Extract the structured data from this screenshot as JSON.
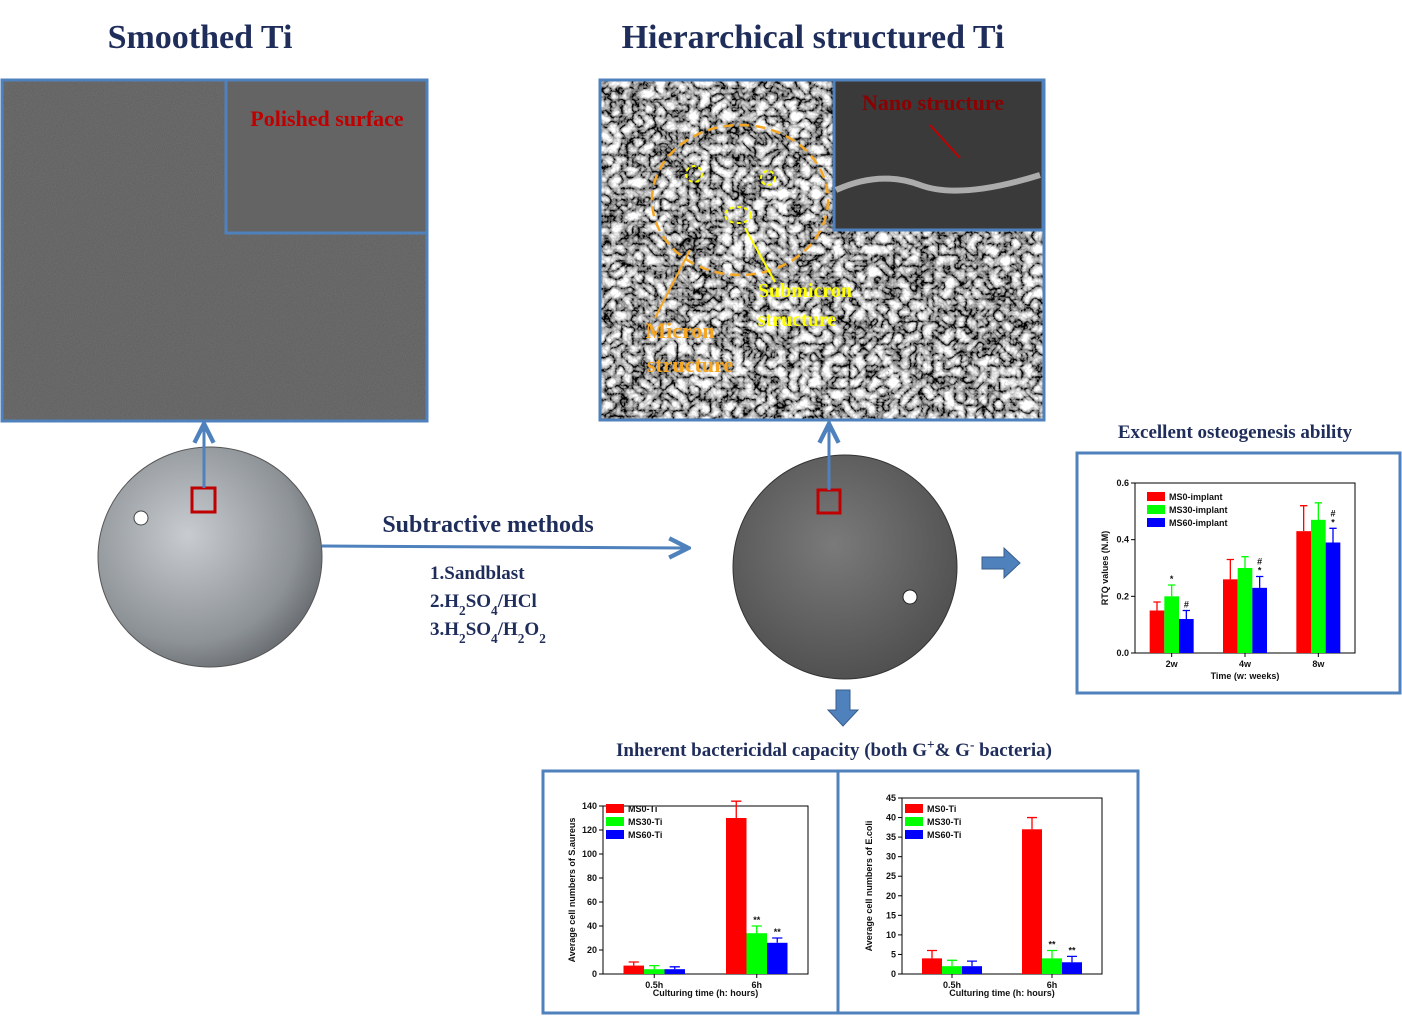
{
  "titles": {
    "left": "Smoothed Ti",
    "right": "Hierarchical structured Ti"
  },
  "labels": {
    "polished": "Polished surface",
    "nano": "Nano structure",
    "micron": [
      "Micron",
      "structure"
    ],
    "submicron": [
      "Submicron",
      "structure"
    ]
  },
  "process": {
    "title": "Subtractive methods",
    "methods": [
      [
        "1.Sandblast"
      ],
      [
        "2.H",
        "2",
        "SO",
        "4",
        "/HCl"
      ],
      [
        "3.H",
        "2",
        "SO",
        "4",
        "/H",
        "2",
        "O",
        "2"
      ]
    ]
  },
  "osteogenesis_title": "Excellent osteogenesis ability",
  "bactericidal_title": [
    "Inherent bactericidal capacity (both G",
    "+",
    "& G",
    "-",
    " bacteria)"
  ],
  "chart_data": [
    {
      "type": "bar",
      "ylabel": "RTQ values (N.M)",
      "xlabel": "Time (w: weeks)",
      "categories": [
        "2w",
        "4w",
        "8w"
      ],
      "ylim": [
        0,
        0.6
      ],
      "yticks": [
        {
          "value": 0,
          "label": "0.0"
        },
        0.2,
        0.4,
        0.6
      ],
      "series": [
        {
          "name": "MS0-implant",
          "color": "#ff0000",
          "values": [
            0.15,
            0.26,
            0.43
          ],
          "errors": [
            0.03,
            0.07,
            0.09
          ],
          "annotations": [
            null,
            null,
            null
          ]
        },
        {
          "name": "MS30-implant",
          "color": "#00ff00",
          "values": [
            0.2,
            0.3,
            0.47
          ],
          "errors": [
            0.04,
            0.04,
            0.06
          ],
          "annotations": [
            [
              "*"
            ],
            null,
            null
          ]
        },
        {
          "name": "MS60-implant",
          "color": "#0000ff",
          "values": [
            0.12,
            0.23,
            0.39
          ],
          "errors": [
            0.03,
            0.04,
            0.05
          ],
          "annotations": [
            [
              "#"
            ],
            [
              "*",
              "#"
            ],
            [
              "*",
              "#"
            ]
          ]
        }
      ]
    },
    {
      "type": "bar",
      "ylabel": "Average cell numbers of S.aureus",
      "xlabel": "Culturing time (h: hours)",
      "categories": [
        "0.5h",
        "6h"
      ],
      "ylim": [
        0,
        140
      ],
      "yticks": [
        0,
        20,
        40,
        60,
        80,
        100,
        120,
        140
      ],
      "series": [
        {
          "name": "MS0-Ti",
          "color": "#ff0000",
          "values": [
            7,
            130
          ],
          "errors": [
            3,
            14
          ],
          "annotations": [
            null,
            null
          ]
        },
        {
          "name": "MS30-Ti",
          "color": "#00ff00",
          "values": [
            4,
            34
          ],
          "errors": [
            3,
            6
          ],
          "annotations": [
            null,
            [
              "**"
            ]
          ]
        },
        {
          "name": "MS60-Ti",
          "color": "#0000ff",
          "values": [
            4,
            26
          ],
          "errors": [
            2,
            4
          ],
          "annotations": [
            null,
            [
              "**"
            ]
          ]
        }
      ]
    },
    {
      "type": "bar",
      "ylabel": "Average cell numbers of E.coli",
      "xlabel": "Culturing time (h: hours)",
      "categories": [
        "0.5h",
        "6h"
      ],
      "ylim": [
        0,
        45
      ],
      "yticks": [
        0,
        5,
        10,
        15,
        20,
        25,
        30,
        35,
        40,
        45
      ],
      "series": [
        {
          "name": "MS0-Ti",
          "color": "#ff0000",
          "values": [
            4,
            37
          ],
          "errors": [
            2,
            3
          ],
          "annotations": [
            null,
            null
          ]
        },
        {
          "name": "MS30-Ti",
          "color": "#00ff00",
          "values": [
            2,
            4
          ],
          "errors": [
            1.5,
            2
          ],
          "annotations": [
            null,
            [
              "**"
            ]
          ]
        },
        {
          "name": "MS60-Ti",
          "color": "#0000ff",
          "values": [
            2,
            3
          ],
          "errors": [
            1.3,
            1.5
          ],
          "annotations": [
            null,
            [
              "**"
            ]
          ]
        }
      ]
    }
  ]
}
